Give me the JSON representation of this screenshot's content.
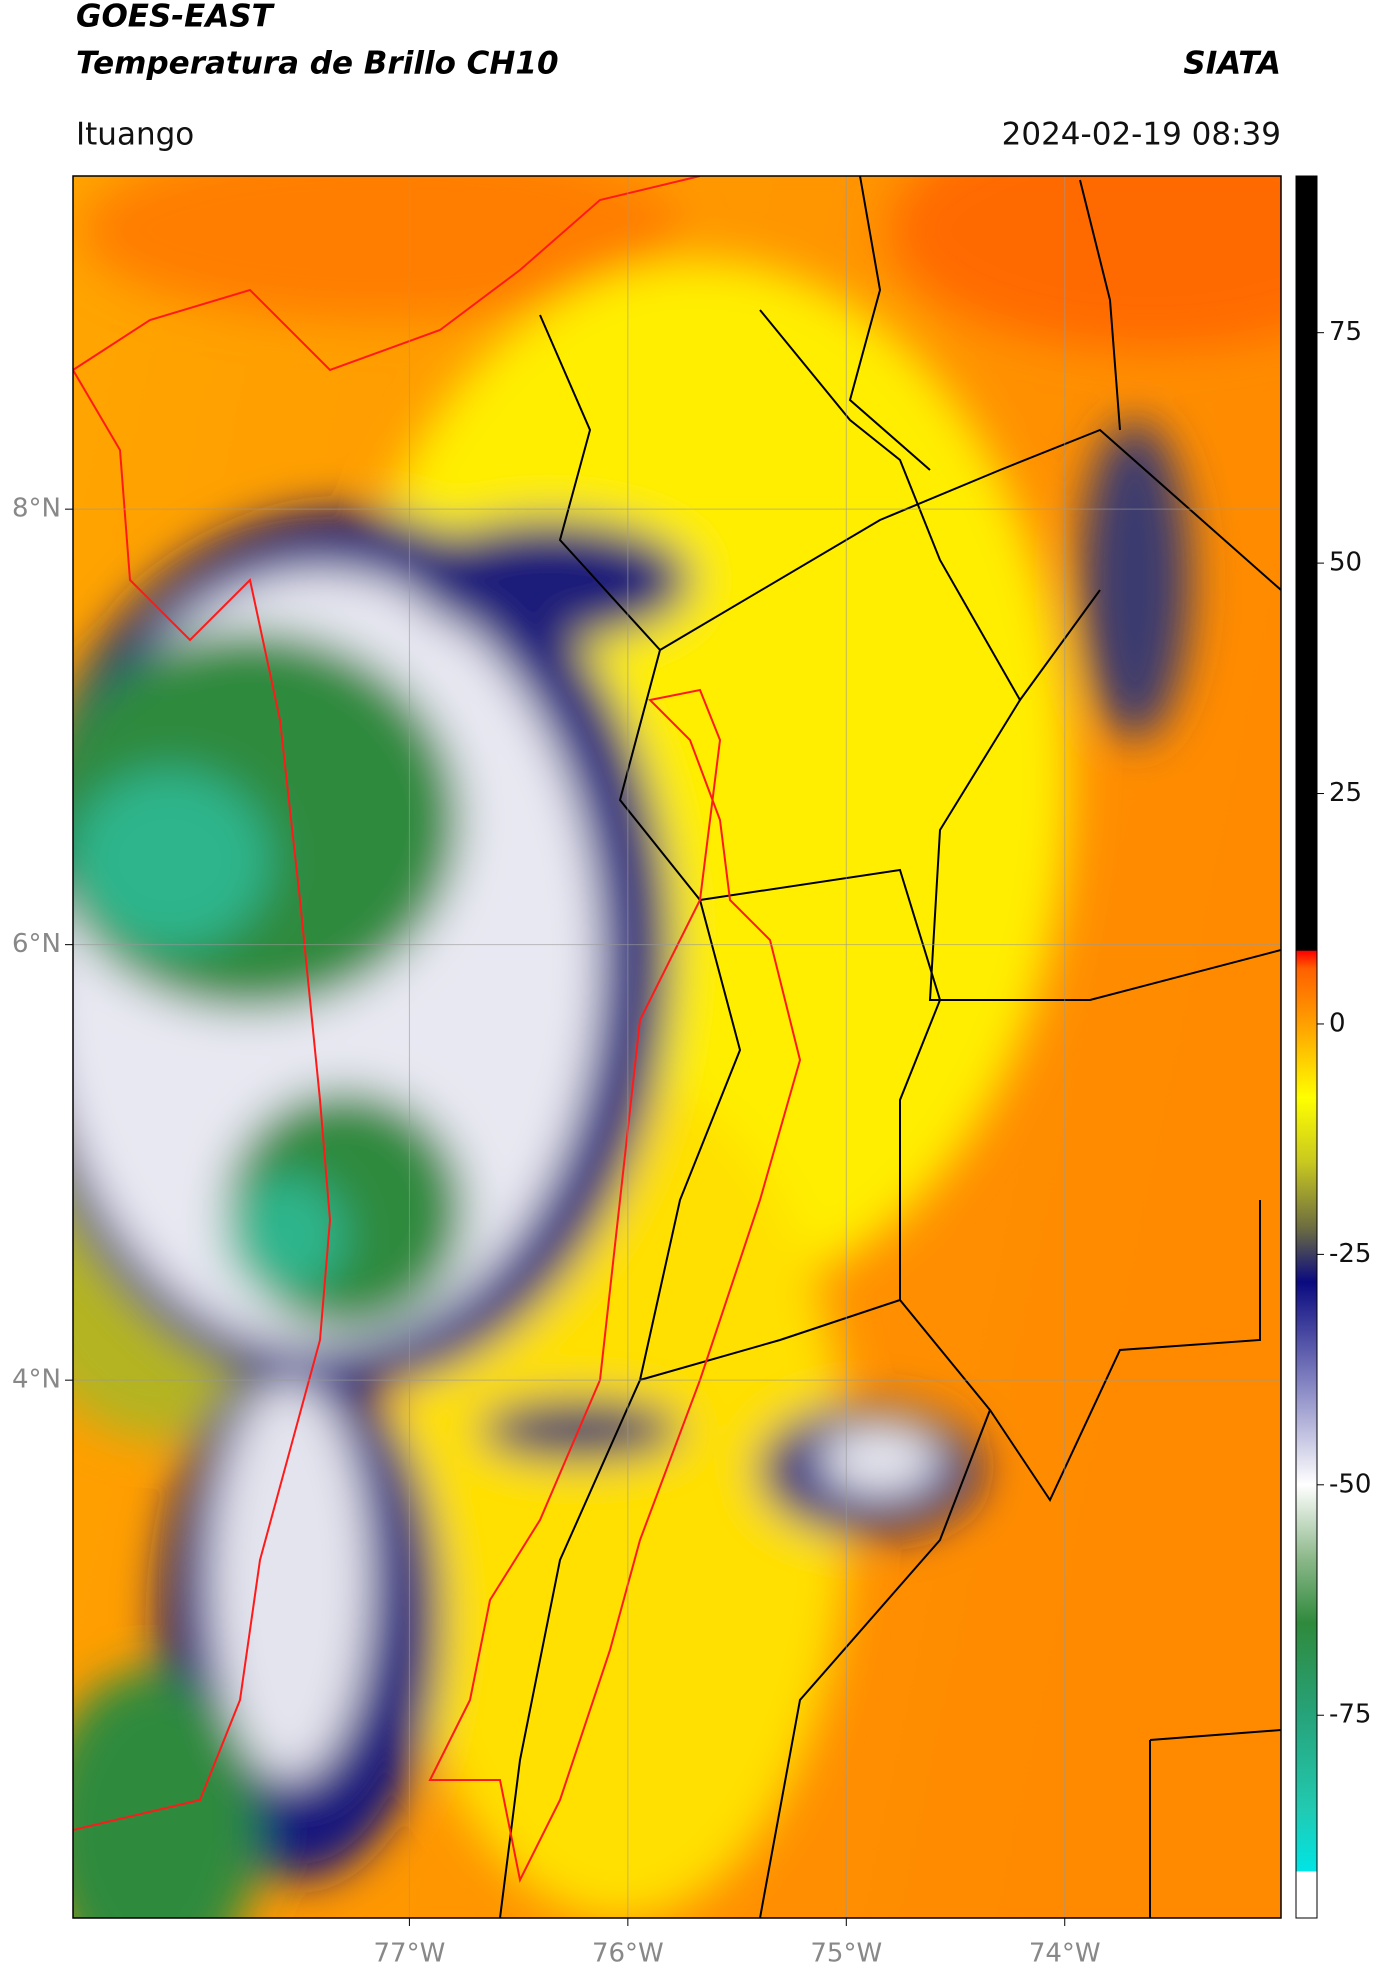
{
  "header": {
    "title": "GOES-EAST",
    "subtitle": "Temperatura de Brillo CH10",
    "source": "SIATA",
    "location": "Ituango",
    "datetime": "2024-02-19 08:39"
  },
  "map": {
    "xlim": [
      -78.54,
      -73.01
    ],
    "ylim": [
      1.53,
      9.53
    ],
    "xticks": [
      {
        "value": -77,
        "label": "77°W"
      },
      {
        "value": -76,
        "label": "76°W"
      },
      {
        "value": -75,
        "label": "75°W"
      },
      {
        "value": -74,
        "label": "74°W"
      }
    ],
    "yticks": [
      {
        "value": 8,
        "label": "8°N"
      },
      {
        "value": 6,
        "label": "6°N"
      },
      {
        "value": 4,
        "label": "4°N"
      }
    ],
    "grid": true
  },
  "colorbar": {
    "clim": [
      -97,
      92
    ],
    "ticks": [
      75,
      50,
      25,
      0,
      -25,
      -50,
      -75
    ],
    "colormap": [
      [
        -97,
        "#ffffff"
      ],
      [
        -92,
        "#ffffff"
      ],
      [
        -91.9,
        "#00e5e5"
      ],
      [
        -85,
        "#22c9b0"
      ],
      [
        -75,
        "#26a37a"
      ],
      [
        -65,
        "#2f8a3c"
      ],
      [
        -58,
        "#8cb88a"
      ],
      [
        -50,
        "#ffffff"
      ],
      [
        -40,
        "#8f8fc8"
      ],
      [
        -28,
        "#0a0a80"
      ],
      [
        -22,
        "#6e6e40"
      ],
      [
        -15,
        "#c8c820"
      ],
      [
        -8,
        "#ffff00"
      ],
      [
        0,
        "#ffa000"
      ],
      [
        6,
        "#ff6000"
      ],
      [
        7.9,
        "#ff0000"
      ],
      [
        8,
        "#000000"
      ],
      [
        92,
        "#000000"
      ]
    ]
  }
}
